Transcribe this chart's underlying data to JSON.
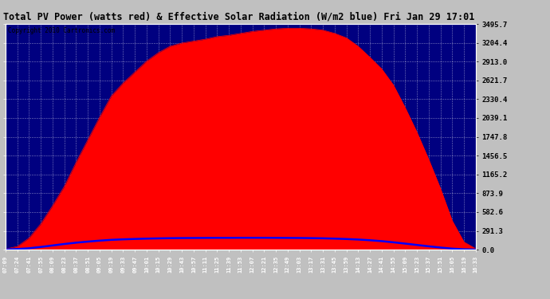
{
  "title": "Total PV Power (watts red) & Effective Solar Radiation (W/m2 blue) Fri Jan 29 17:01",
  "copyright": "Copyright 2010 Cartronics.com",
  "ylabel_right": [
    "3495.7",
    "3204.4",
    "2913.0",
    "2621.7",
    "2330.4",
    "2039.1",
    "1747.8",
    "1456.5",
    "1165.2",
    "873.9",
    "582.6",
    "291.3",
    "0.0"
  ],
  "ymax": 3495.7,
  "ymin": 0.0,
  "ytick_values": [
    0.0,
    291.3,
    582.6,
    873.9,
    1165.2,
    1456.5,
    1747.8,
    2039.1,
    2330.4,
    2621.7,
    2913.0,
    3204.4,
    3495.7
  ],
  "x_labels": [
    "07:09",
    "07:24",
    "07:41",
    "07:55",
    "08:09",
    "08:23",
    "08:37",
    "08:51",
    "09:05",
    "09:19",
    "09:33",
    "09:47",
    "10:01",
    "10:15",
    "10:29",
    "10:43",
    "10:57",
    "11:11",
    "11:25",
    "11:39",
    "11:53",
    "12:07",
    "12:21",
    "12:35",
    "12:49",
    "13:03",
    "13:17",
    "13:31",
    "13:45",
    "13:59",
    "14:13",
    "14:27",
    "14:41",
    "14:55",
    "15:09",
    "15:23",
    "15:37",
    "15:51",
    "16:05",
    "16:19",
    "16:33"
  ],
  "bg_color": "#000080",
  "red_color": "#FF0000",
  "blue_color": "#0000FF",
  "title_bg": "#c0c0c0",
  "pv_power": [
    10,
    50,
    180,
    400,
    680,
    980,
    1350,
    1700,
    2050,
    2380,
    2580,
    2750,
    2920,
    3050,
    3150,
    3200,
    3230,
    3260,
    3300,
    3320,
    3350,
    3380,
    3400,
    3420,
    3430,
    3430,
    3420,
    3400,
    3350,
    3280,
    3150,
    2980,
    2800,
    2550,
    2200,
    1820,
    1400,
    950,
    450,
    120,
    15
  ],
  "solar_rad": [
    3,
    10,
    22,
    42,
    65,
    88,
    108,
    125,
    140,
    152,
    160,
    166,
    171,
    175,
    178,
    180,
    181,
    182,
    183,
    183,
    184,
    184,
    184,
    183,
    182,
    181,
    179,
    176,
    171,
    165,
    157,
    146,
    132,
    114,
    94,
    73,
    52,
    33,
    16,
    6,
    1
  ]
}
